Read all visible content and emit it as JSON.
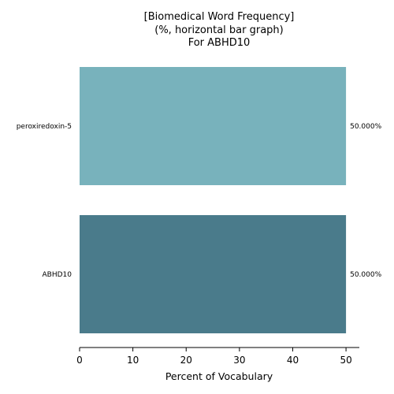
{
  "chart_data": {
    "type": "bar",
    "orientation": "horizontal",
    "title_lines": [
      "[Biomedical Word Frequency]",
      "(%, horizontal bar graph)",
      "For ABHD10"
    ],
    "categories": [
      "peroxiredoxin-5",
      "ABHD10"
    ],
    "values": [
      50.0,
      50.0
    ],
    "value_labels": [
      "50.000%",
      "50.000%"
    ],
    "colors": [
      "#78b2bc",
      "#4a7b8b"
    ],
    "xlabel": "Percent of Vocabulary",
    "ylabel": "",
    "xlim": [
      0,
      52.5
    ],
    "xticks": [
      0,
      10,
      20,
      30,
      40,
      50
    ],
    "grid": false,
    "legend": "none"
  }
}
